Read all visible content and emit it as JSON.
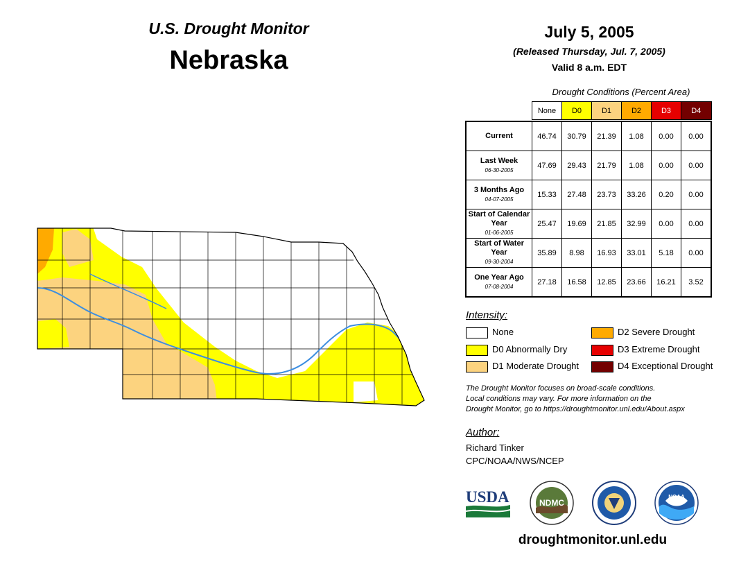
{
  "header": {
    "product": "U.S. Drought Monitor",
    "state": "Nebraska",
    "date": "July 5, 2005",
    "released": "(Released Thursday, Jul. 7, 2005)",
    "valid": "Valid 8 a.m. EDT"
  },
  "table": {
    "caption": "Drought Conditions (Percent Area)",
    "columns": [
      "None",
      "D0",
      "D1",
      "D2",
      "D3",
      "D4"
    ],
    "column_colors": [
      "#ffffff",
      "#ffff00",
      "#fcd37f",
      "#ffaa00",
      "#e60000",
      "#730000"
    ],
    "rows": [
      {
        "label": "Current",
        "sub": "",
        "values": [
          "46.74",
          "30.79",
          "21.39",
          "1.08",
          "0.00",
          "0.00"
        ]
      },
      {
        "label": "Last Week",
        "sub": "06-30-2005",
        "values": [
          "47.69",
          "29.43",
          "21.79",
          "1.08",
          "0.00",
          "0.00"
        ]
      },
      {
        "label": "3 Months Ago",
        "sub": "04-07-2005",
        "values": [
          "15.33",
          "27.48",
          "23.73",
          "33.26",
          "0.20",
          "0.00"
        ]
      },
      {
        "label": "Start of Calendar Year",
        "sub": "01-06-2005",
        "values": [
          "25.47",
          "19.69",
          "21.85",
          "32.99",
          "0.00",
          "0.00"
        ]
      },
      {
        "label": "Start of Water Year",
        "sub": "09-30-2004",
        "values": [
          "35.89",
          "8.98",
          "16.93",
          "33.01",
          "5.18",
          "0.00"
        ]
      },
      {
        "label": "One Year Ago",
        "sub": "07-08-2004",
        "values": [
          "27.18",
          "16.58",
          "12.85",
          "23.66",
          "16.21",
          "3.52"
        ]
      }
    ]
  },
  "legend": {
    "title": "Intensity:",
    "items": [
      {
        "label": "None",
        "color": "#ffffff"
      },
      {
        "label": "D0 Abnormally Dry",
        "color": "#ffff00"
      },
      {
        "label": "D1 Moderate Drought",
        "color": "#fcd37f"
      },
      {
        "label": "D2 Severe Drought",
        "color": "#ffaa00"
      },
      {
        "label": "D3 Extreme Drought",
        "color": "#e60000"
      },
      {
        "label": "D4 Exceptional Drought",
        "color": "#730000"
      }
    ]
  },
  "note": {
    "line1": "The Drought Monitor focuses on broad-scale conditions.",
    "line2": "Local conditions may vary. For more information on the",
    "line3": "Drought Monitor, go to https://droughtmonitor.unl.edu/About.aspx"
  },
  "author": {
    "title": "Author:",
    "name": "Richard Tinker",
    "org": "CPC/NOAA/NWS/NCEP"
  },
  "logos": {
    "usda": "USDA",
    "ndmc": "NDMC",
    "noaa": "NOAA"
  },
  "footer": {
    "url": "droughtmonitor.unl.edu"
  },
  "map": {
    "river_color": "#3d8ee0"
  }
}
